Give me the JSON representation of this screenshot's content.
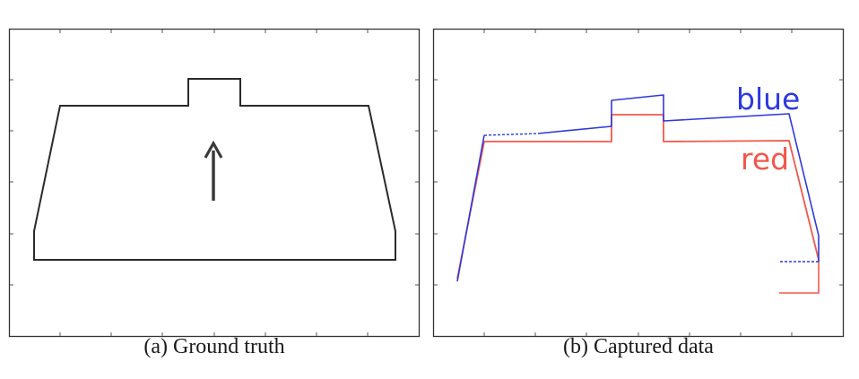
{
  "panels": [
    {
      "id": "a",
      "caption": "(a)  Ground truth",
      "outline_color": "#2a2a2a",
      "arrow_color": "#3a3a3a"
    },
    {
      "id": "b",
      "caption": "(b)  Captured data",
      "series": [
        {
          "label": "blue",
          "color": "#2d39e0"
        },
        {
          "label": "red",
          "color": "#f2584a"
        }
      ]
    }
  ],
  "colors": {
    "frame": "#333333",
    "tick": "#555555"
  }
}
